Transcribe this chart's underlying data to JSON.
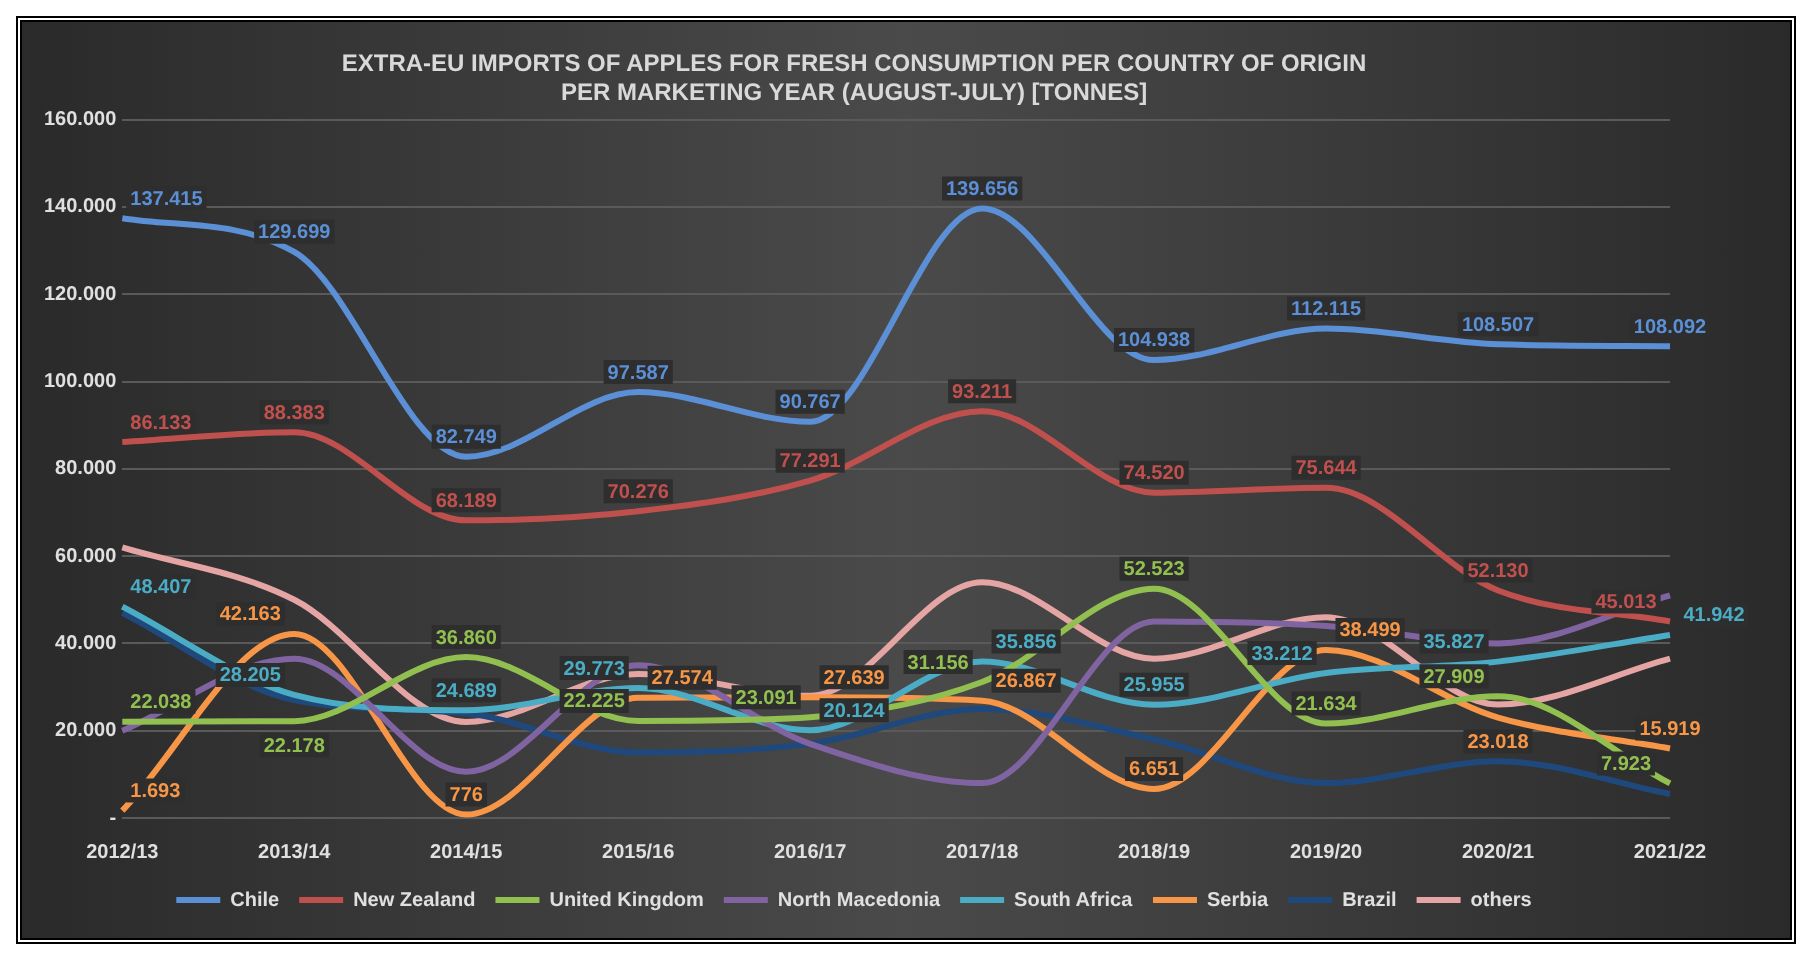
{
  "chart_data": {
    "type": "line",
    "title": "EXTRA-EU IMPORTS OF APPLES FOR FRESH CONSUMPTION PER COUNTRY OF ORIGIN\nPER MARKETING YEAR (AUGUST-JULY) [TONNES]",
    "categories": [
      "2012/13",
      "2013/14",
      "2014/15",
      "2015/16",
      "2016/17",
      "2017/18",
      "2018/19",
      "2019/20",
      "2020/21",
      "2021/22"
    ],
    "ylim": [
      0,
      160000
    ],
    "yticks": [
      {
        "value": 0,
        "label": "-"
      },
      {
        "value": 20000,
        "label": "20.000"
      },
      {
        "value": 40000,
        "label": "40.000"
      },
      {
        "value": 60000,
        "label": "60.000"
      },
      {
        "value": 80000,
        "label": "80.000"
      },
      {
        "value": 100000,
        "label": "100.000"
      },
      {
        "value": 120000,
        "label": "120.000"
      },
      {
        "value": 140000,
        "label": "140.000"
      },
      {
        "value": 160000,
        "label": "160.000"
      }
    ],
    "grid": "y",
    "legend": "bottom",
    "marker": "none",
    "line_style": "solid",
    "series": [
      {
        "name": "Chile",
        "color": "#5b8fd6",
        "values": [
          137415,
          129699,
          82749,
          97587,
          90767,
          139656,
          104938,
          112115,
          108507,
          108092
        ],
        "value_labels": [
          "137.415",
          "129.699",
          "82.749",
          "97.587",
          "90.767",
          "139.656",
          "104.938",
          "112.115",
          "108.507",
          "108.092"
        ]
      },
      {
        "name": "New Zealand",
        "color": "#c0504d",
        "values": [
          86133,
          88383,
          68189,
          70276,
          77291,
          93211,
          74520,
          75644,
          52130,
          45013
        ],
        "value_labels": [
          "86.133",
          "88.383",
          "68.189",
          "70.276",
          "77.291",
          "93.211",
          "74.520",
          "75.644",
          "52.130",
          "45.013"
        ]
      },
      {
        "name": "United Kingdom",
        "color": "#92c050",
        "values": [
          22038,
          22178,
          36860,
          22225,
          23091,
          31156,
          52523,
          21634,
          27909,
          7923
        ],
        "value_labels": [
          "22.038",
          "22.178",
          "36.860",
          "22.225",
          "23.091",
          "31.156",
          "52.523",
          "21.634",
          "27.909",
          "7.923"
        ]
      },
      {
        "name": "North Macedonia",
        "color": "#8064a2",
        "values": [
          20000,
          36500,
          10600,
          35000,
          17000,
          8000,
          45000,
          44000,
          40000,
          51000
        ]
      },
      {
        "name": "South Africa",
        "color": "#4bacc6",
        "values": [
          48407,
          28205,
          24689,
          29773,
          20124,
          35856,
          25955,
          33212,
          35827,
          41942
        ],
        "value_labels": [
          "48.407",
          "28.205",
          "24.689",
          "29.773",
          "20.124",
          "35.856",
          "25.955",
          "33.212",
          "35.827",
          "41.942"
        ]
      },
      {
        "name": "Serbia",
        "color": "#f79646",
        "values": [
          1693,
          42163,
          776,
          27574,
          27639,
          26867,
          6651,
          38499,
          23018,
          15919
        ],
        "value_labels": [
          "1.693",
          "42.163",
          "776",
          "27.574",
          "27.639",
          "26.867",
          "6.651",
          "38.499",
          "23.018",
          "15.919"
        ]
      },
      {
        "name": "Brazil",
        "color": "#1f497d",
        "values": [
          47000,
          27000,
          24000,
          15000,
          17000,
          25000,
          18000,
          8000,
          13000,
          5500
        ]
      },
      {
        "name": "others",
        "color": "#e6a5a5",
        "values": [
          62000,
          50000,
          22000,
          33000,
          28000,
          54000,
          36500,
          46000,
          26000,
          36500
        ]
      }
    ]
  }
}
